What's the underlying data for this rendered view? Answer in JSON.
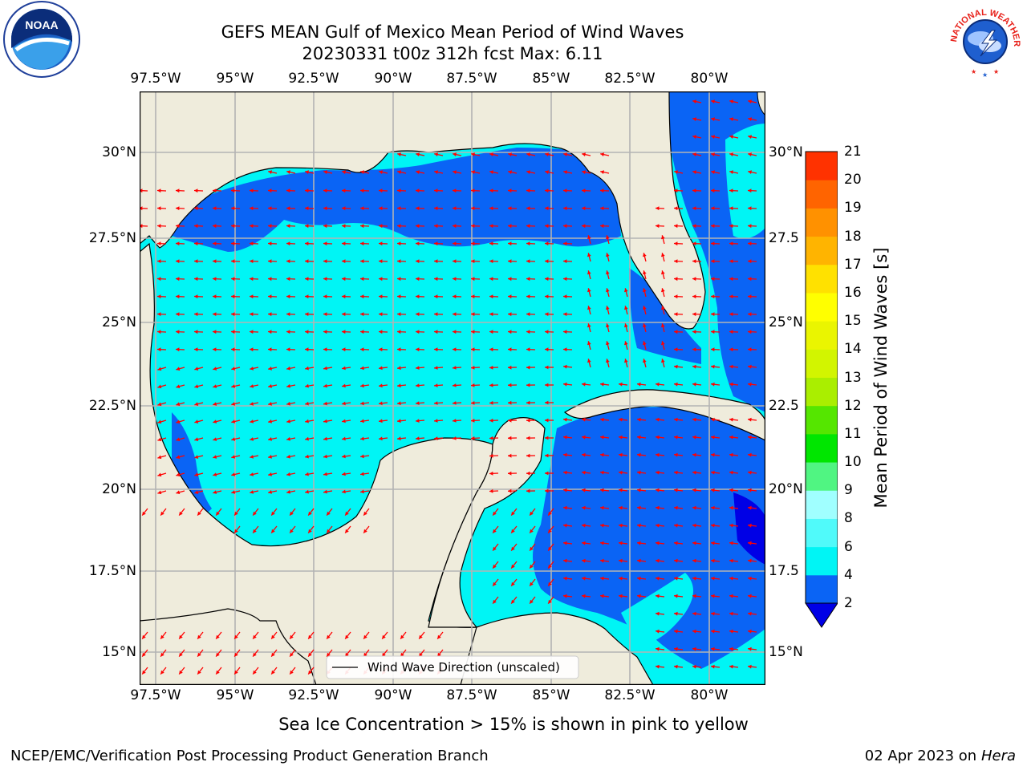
{
  "title": {
    "line1": "GEFS MEAN Gulf of Mexico Mean Period of Wind Waves",
    "line2": "20230331 t00z 312h fcst   Max: 6.11"
  },
  "logos": {
    "noaa": {
      "icon": "noaa-logo",
      "text": "NOAA"
    },
    "nws": {
      "icon": "nws-logo",
      "text": "NATIONAL WEATHER SERVICE"
    }
  },
  "map": {
    "lon_ticks": [
      "97.5°W",
      "95°W",
      "92.5°W",
      "90°W",
      "87.5°W",
      "85°W",
      "82.5°W",
      "80°W"
    ],
    "lat_ticks_left": [
      "30°N",
      "27.5°N",
      "25°N",
      "22.5°N",
      "20°N",
      "17.5°N",
      "15°N"
    ],
    "lat_ticks_right": [
      "30°N",
      "27.5",
      "25°N",
      "22.5",
      "20°N",
      "17.5",
      "15°N"
    ],
    "legend": "Wind Wave Direction (unscaled)",
    "colors": {
      "land": "#efecdc",
      "gridline": "#b3b3b3",
      "arrow": "#ff0000",
      "coast": "#000000"
    }
  },
  "colorbar": {
    "label": "Mean Period of Wind Waves [s]",
    "ticks": [
      "2",
      "4",
      "6",
      "8",
      "9",
      "10",
      "11",
      "12",
      "13",
      "14",
      "15",
      "16",
      "17",
      "18",
      "19",
      "20",
      "21"
    ],
    "colors": [
      "#0a64f5",
      "#00f5f5",
      "#50fafa",
      "#a0ffff",
      "#50f582",
      "#00e600",
      "#55e600",
      "#aaee00",
      "#d2f500",
      "#eaf500",
      "#ffff00",
      "#ffe100",
      "#ffb400",
      "#ff9100",
      "#ff6400",
      "#ff3200"
    ],
    "under_color": "#0000e6"
  },
  "chart_data": {
    "type": "heatmap",
    "variable": "Mean Period of Wind Waves [s]",
    "max": 6.11,
    "lon_range": [
      -98.5,
      -78.7
    ],
    "lat_range": [
      14.1,
      31.8
    ],
    "levels": [
      2,
      4,
      6,
      8,
      9,
      10,
      11,
      12,
      13,
      14,
      15,
      16,
      17,
      18,
      19,
      20,
      21
    ]
  },
  "notes": {
    "ice": "Sea Ice Concentration > 15% is shown in pink to yellow",
    "credit": "NCEP/EMC/Verification Post Processing Product Generation Branch",
    "date": "02 Apr 2023 on ",
    "host": "Hera"
  }
}
